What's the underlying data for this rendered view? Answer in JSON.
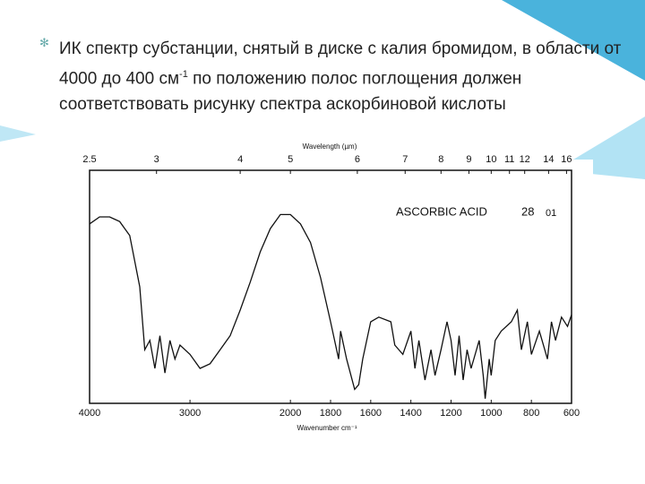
{
  "slide": {
    "bullet": [
      "ИК спектр субстанции, снятый в диске с калия бромидом, в области от 4000 до 400 см",
      "-1",
      " по положению полос поглощения должен соответствовать рисунку спектра аскорбиновой кислоты"
    ]
  },
  "chart_data": {
    "type": "line",
    "color": "#111111",
    "x_title": "Wavenumber  cm⁻¹",
    "top_title": "Wavelength (µm)",
    "annotations": [
      "ASCORBIC ACID",
      "28",
      "01"
    ],
    "xlim": [
      4000,
      600
    ],
    "x_scale_change_at": 2000,
    "xticks": [
      4000,
      3000,
      2000,
      1800,
      1600,
      1400,
      1200,
      1000,
      800,
      600
    ],
    "top_ticks": [
      2.5,
      3,
      4,
      5,
      6,
      7,
      8,
      9,
      10,
      11,
      12,
      14,
      16
    ],
    "ylim": [
      0,
      100
    ],
    "x": [
      4000,
      3900,
      3800,
      3700,
      3600,
      3500,
      3450,
      3400,
      3350,
      3300,
      3250,
      3200,
      3150,
      3100,
      3000,
      2900,
      2800,
      2700,
      2600,
      2500,
      2400,
      2300,
      2200,
      2100,
      2000,
      1950,
      1900,
      1850,
      1800,
      1760,
      1750,
      1720,
      1680,
      1660,
      1640,
      1600,
      1560,
      1500,
      1480,
      1440,
      1400,
      1380,
      1360,
      1330,
      1300,
      1280,
      1250,
      1220,
      1200,
      1180,
      1160,
      1140,
      1120,
      1100,
      1060,
      1040,
      1030,
      1010,
      1000,
      980,
      950,
      900,
      870,
      850,
      820,
      800,
      760,
      720,
      700,
      680,
      650,
      620,
      600
    ],
    "values": [
      77,
      80,
      80,
      78,
      72,
      50,
      23,
      27,
      15,
      29,
      13,
      27,
      19,
      25,
      21,
      15,
      17,
      23,
      29,
      40,
      52,
      65,
      75,
      81,
      81,
      77,
      69,
      54,
      35,
      19,
      31,
      19,
      6,
      8,
      19,
      35,
      37,
      35,
      25,
      21,
      31,
      15,
      27,
      10,
      23,
      12,
      23,
      35,
      27,
      12,
      29,
      10,
      23,
      15,
      27,
      12,
      2,
      19,
      12,
      27,
      31,
      35,
      40,
      23,
      35,
      21,
      31,
      19,
      35,
      27,
      37,
      33,
      38
    ]
  }
}
